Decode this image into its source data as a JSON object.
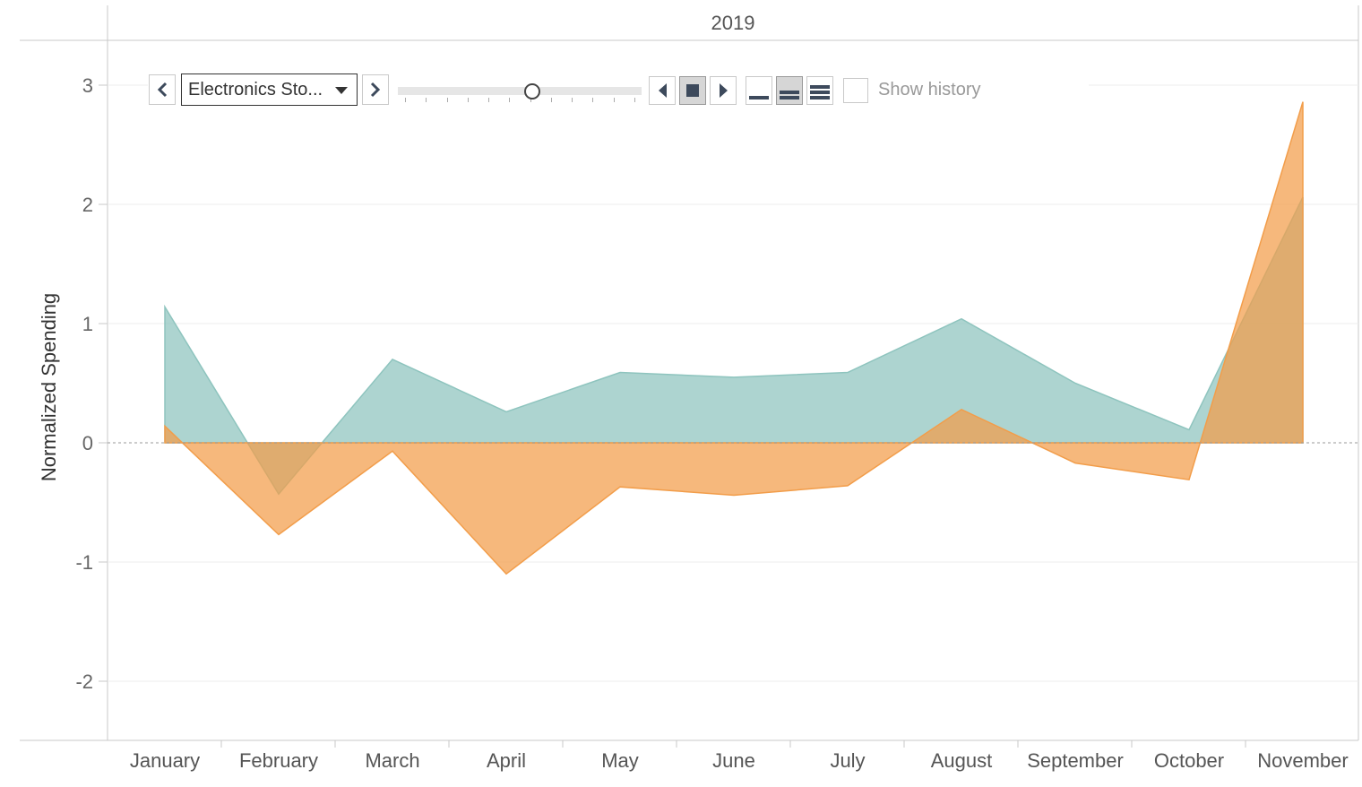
{
  "header": {
    "year": "2019"
  },
  "controls": {
    "dropdown_value": "Electronics Sto...",
    "show_history_label": "Show history",
    "slider_value": 0.55,
    "slider_tick_count": 12,
    "history_marks_mode": "medium",
    "icons": [
      "chevron-left-icon",
      "chevron-right-icon",
      "caret-down-icon",
      "step-back-icon",
      "stop-icon",
      "step-forward-icon",
      "trail-small-icon",
      "trail-medium-icon",
      "trail-large-icon"
    ]
  },
  "chart_data": {
    "type": "area",
    "title": "",
    "xlabel": "",
    "ylabel": "Normalized Spending",
    "categories": [
      "January",
      "February",
      "March",
      "April",
      "May",
      "June",
      "July",
      "August",
      "September",
      "October",
      "November"
    ],
    "ylim": [
      -2.5,
      3.3
    ],
    "yticks": [
      3,
      2,
      1,
      0,
      -1,
      -2
    ],
    "ytick_labels": [
      "3",
      "2",
      "1",
      "0",
      "-1",
      "-2"
    ],
    "grid": true,
    "legend": "none",
    "series": [
      {
        "values": [
          1.14,
          -0.43,
          0.7,
          0.26,
          0.59,
          0.55,
          0.59,
          1.04,
          0.5,
          0.11,
          2.06
        ],
        "color": "#8ec4be"
      },
      {
        "values": [
          0.14,
          -0.77,
          -0.07,
          -1.1,
          -0.37,
          -0.44,
          -0.36,
          0.28,
          -0.17,
          -0.31,
          2.86
        ],
        "color": "#f29d4a"
      }
    ]
  }
}
